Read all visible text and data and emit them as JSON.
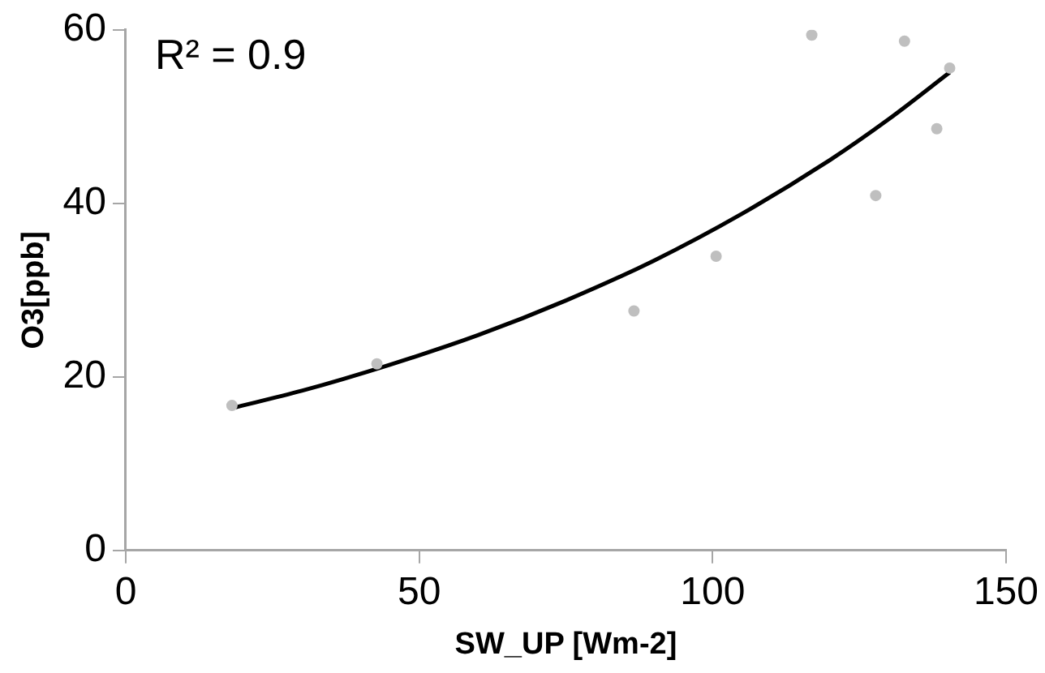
{
  "chart_data": {
    "type": "scatter",
    "xlabel": "SW_UP [Wm-2]",
    "ylabel": "O3[ppb]",
    "annotations": [
      "R² = 0.9"
    ],
    "xlim": [
      0,
      150
    ],
    "xticks": [
      0,
      50,
      100,
      150
    ],
    "ylim": [
      0,
      60
    ],
    "yticks": [
      0,
      20,
      40,
      60
    ],
    "grid": false,
    "legend": false,
    "marker": "circle",
    "series": [
      {
        "color": "#bfbfbf",
        "x": [
          18.1,
          42.8,
          86.6,
          100.6,
          116.9,
          127.8,
          132.7,
          138.2,
          140.4
        ],
        "values": [
          16.7,
          21.5,
          27.6,
          33.9,
          59.4,
          40.9,
          58.7,
          48.6,
          55.6
        ]
      },
      {
        "type": "line",
        "color": "#000000",
        "marker": "none",
        "x": [
          18.1,
          30,
          45,
          60,
          75,
          90,
          105,
          120,
          130,
          140.4
        ],
        "values": [
          16.4,
          18.4,
          21.4,
          24.8,
          28.8,
          33.4,
          38.8,
          45.0,
          49.7,
          55.1
        ]
      }
    ]
  }
}
